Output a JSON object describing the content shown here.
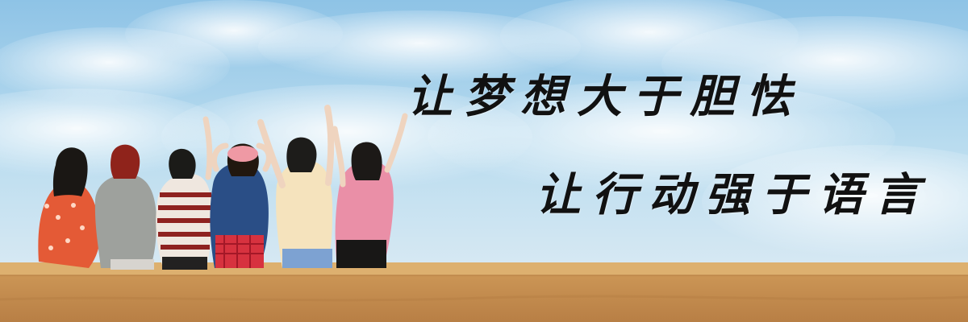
{
  "banner": {
    "line1": "让梦想大于胆怯",
    "line2": "让行动强于语言"
  },
  "colors": {
    "sky_top": "#8ec3e6",
    "sky_bottom": "#e4eef5",
    "wall_top": "#d8aa68",
    "wall_body": "#c8924f",
    "text": "#111111"
  },
  "scene": {
    "people_count": 6,
    "icons": [
      "cloud",
      "person",
      "wall"
    ]
  }
}
